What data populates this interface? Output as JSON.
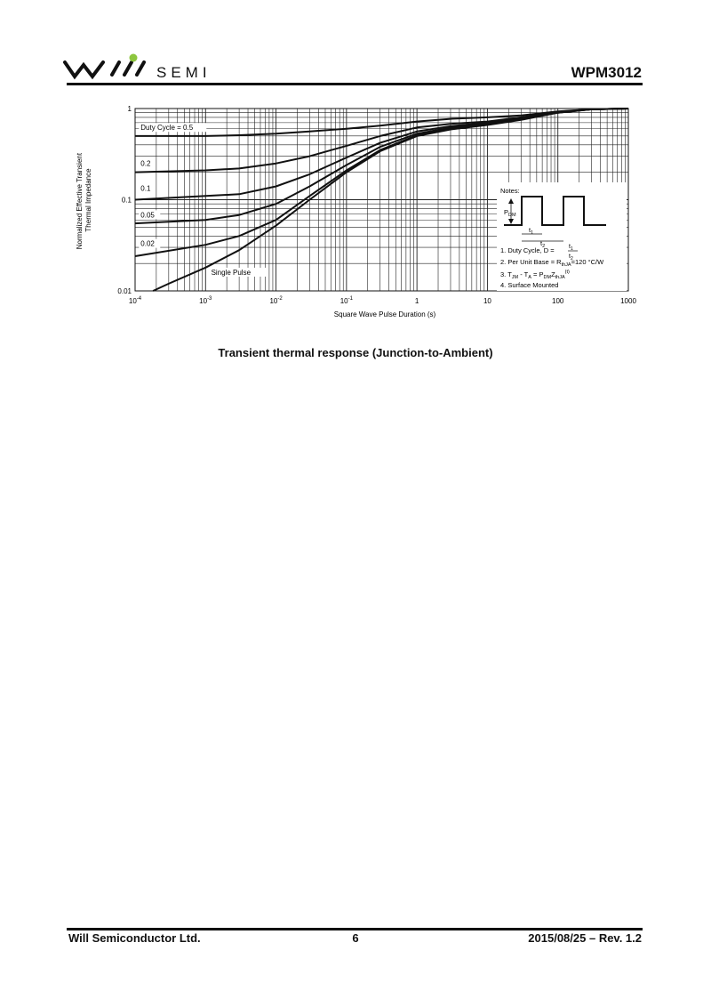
{
  "header": {
    "brand": "SEMI",
    "doc_title": "WPM3012"
  },
  "chart_data": {
    "type": "line",
    "xlabel": "Square Wave Pulse Duration (s)",
    "ylabel": "Normalized Effective Transient Thermal Impedance",
    "x_scale": "log",
    "y_scale": "log",
    "xlim": [
      0.0001,
      1000
    ],
    "ylim": [
      0.01,
      1
    ],
    "x_ticks": [
      0.0001,
      0.001,
      0.01,
      0.1,
      1,
      10,
      100,
      1000
    ],
    "y_ticks": [
      0.01,
      0.1,
      1
    ],
    "y_tick_labels": [
      "0.01",
      "0.1",
      "1"
    ],
    "grid": true,
    "series": [
      {
        "name": "Duty Cycle = 0.5",
        "x": [
          0.0001,
          0.001,
          0.003,
          0.01,
          0.03,
          0.1,
          0.3,
          1,
          3,
          10,
          30,
          100,
          300,
          1000
        ],
        "y": [
          0.5,
          0.5,
          0.51,
          0.53,
          0.56,
          0.6,
          0.65,
          0.72,
          0.77,
          0.8,
          0.84,
          0.93,
          0.98,
          1.0
        ]
      },
      {
        "name": "0.2",
        "x": [
          0.0001,
          0.001,
          0.003,
          0.01,
          0.03,
          0.1,
          0.3,
          1,
          3,
          10,
          30,
          100,
          300,
          1000
        ],
        "y": [
          0.2,
          0.21,
          0.22,
          0.25,
          0.3,
          0.39,
          0.5,
          0.62,
          0.68,
          0.72,
          0.8,
          0.92,
          0.98,
          1.0
        ]
      },
      {
        "name": "0.1",
        "x": [
          0.0001,
          0.001,
          0.003,
          0.01,
          0.03,
          0.1,
          0.3,
          1,
          3,
          10,
          30,
          100,
          300,
          1000
        ],
        "y": [
          0.1,
          0.11,
          0.115,
          0.14,
          0.19,
          0.29,
          0.42,
          0.56,
          0.64,
          0.7,
          0.78,
          0.91,
          0.98,
          1.0
        ]
      },
      {
        "name": "0.05",
        "x": [
          0.0001,
          0.001,
          0.003,
          0.01,
          0.03,
          0.1,
          0.3,
          1,
          3,
          10,
          30,
          100,
          300,
          1000
        ],
        "y": [
          0.055,
          0.06,
          0.068,
          0.09,
          0.14,
          0.24,
          0.38,
          0.53,
          0.62,
          0.68,
          0.77,
          0.91,
          0.98,
          1.0
        ]
      },
      {
        "name": "0.02",
        "x": [
          0.0001,
          0.001,
          0.003,
          0.01,
          0.03,
          0.1,
          0.3,
          1,
          3,
          10,
          30,
          100,
          300,
          1000
        ],
        "y": [
          0.024,
          0.032,
          0.04,
          0.06,
          0.11,
          0.21,
          0.35,
          0.51,
          0.6,
          0.67,
          0.76,
          0.9,
          0.98,
          1.0
        ]
      },
      {
        "name": "Single Pulse",
        "x": [
          0.00018,
          0.0003,
          0.001,
          0.003,
          0.01,
          0.03,
          0.1,
          0.3,
          1,
          3,
          10,
          30,
          100,
          300,
          1000
        ],
        "y": [
          0.01,
          0.012,
          0.018,
          0.028,
          0.052,
          0.1,
          0.2,
          0.34,
          0.5,
          0.59,
          0.66,
          0.75,
          0.9,
          0.98,
          1.0
        ]
      }
    ],
    "notes": {
      "title": "Notes:",
      "pdm": "P",
      "pdm_sub": "DM",
      "t1": "t",
      "t1_sub": "1",
      "t2": "t",
      "t2_sub": "2",
      "note1": "1. Duty Cycle, D =",
      "note2_a": "2. Per Unit Base = R",
      "note2_sub": "thJA",
      "note2_b": "=120 °C/W",
      "note3": "3. T",
      "note3_sub1": "JM",
      "note3_b": " - T",
      "note3_sub2": "A",
      "note3_c": " = P",
      "note3_sub3": "DM",
      "note3_d": "Z",
      "note3_sub4": "thJA",
      "note3_sup": "(t)",
      "note4": "4. Surface Mounted"
    }
  },
  "caption": "Transient thermal response (Junction-to-Ambient)",
  "footer": {
    "company": "Will Semiconductor Ltd.",
    "page": "6",
    "revision": "2015/08/25 – Rev. 1.2"
  }
}
